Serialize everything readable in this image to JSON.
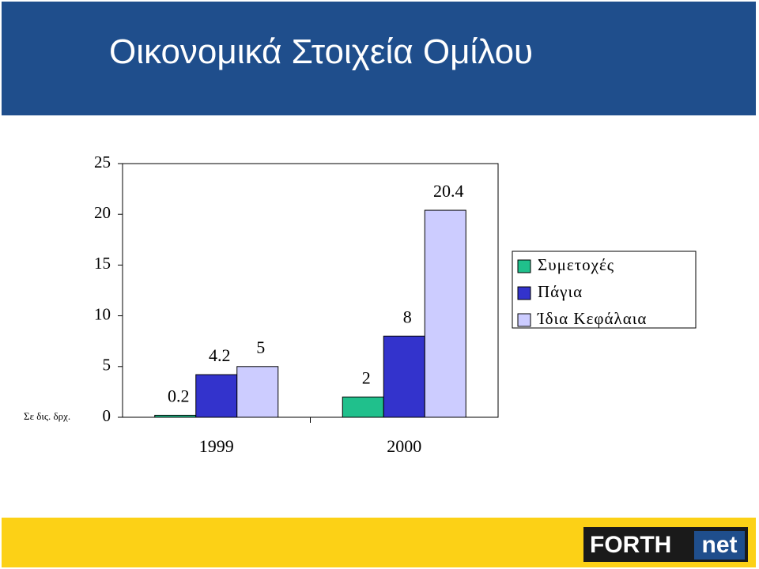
{
  "chart_data": {
    "type": "bar",
    "title": "Οικονομικά Στοιχεία Ομίλου",
    "unit_label": "Σε δις. δρχ.",
    "categories": [
      "1999",
      "2000"
    ],
    "series": [
      {
        "name": "Συμετοχές",
        "color": "#20c08c",
        "values": [
          0.2,
          2
        ]
      },
      {
        "name": "Πάγια",
        "color": "#3333cc",
        "values": [
          4.2,
          8
        ]
      },
      {
        "name": "Ίδια Κεφάλαια",
        "color": "#ccccff",
        "values": [
          5,
          20.4
        ]
      }
    ],
    "ylim": [
      0,
      25
    ],
    "yticks": [
      0,
      5,
      10,
      15,
      20,
      25
    ],
    "grid": false,
    "legend": "right"
  },
  "footer": {
    "logo_left": "FORTH",
    "logo_right": "net"
  }
}
